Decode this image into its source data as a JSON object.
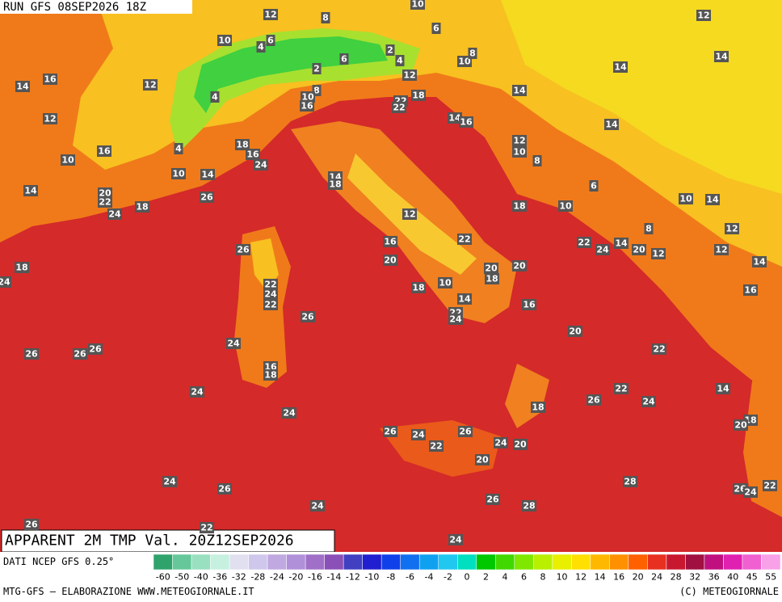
{
  "header": {
    "run": "RUN GFS 08SEP2026 18Z",
    "title": "APPARENT 2M TMP Val. 20Z12SEP2026",
    "source": "DATI NCEP GFS 0.25°",
    "footer_left": "MTG-GFS — ELABORAZIONE WWW.METEOGIORNALE.IT",
    "footer_right": "(C) METEOGIORNALE"
  },
  "map_labels": [
    12,
    8,
    10,
    6,
    12,
    10,
    4,
    6,
    2,
    6,
    4,
    10,
    8,
    14,
    14,
    14,
    16,
    12,
    14,
    2,
    8,
    10,
    16,
    4,
    12,
    18,
    22,
    22,
    12,
    14,
    16,
    14,
    12,
    10,
    8,
    16,
    10,
    18,
    16,
    24,
    4,
    10,
    14,
    14,
    18,
    14,
    20,
    22,
    24,
    18,
    26,
    6,
    10,
    14,
    18,
    10,
    12,
    22,
    16,
    22,
    24,
    14,
    20,
    12,
    8,
    12,
    12,
    14,
    18,
    26,
    20,
    20,
    20,
    18,
    24,
    16,
    22,
    24,
    22,
    18,
    10,
    14,
    16,
    22,
    24,
    26,
    24,
    20,
    22,
    26,
    26,
    26,
    16,
    18,
    24,
    24,
    18,
    26,
    22,
    24,
    14,
    18,
    20,
    26,
    24,
    22,
    26,
    24,
    20,
    20,
    28,
    24,
    26,
    26,
    24,
    22,
    24,
    26,
    28,
    26,
    22,
    24
  ],
  "colorbar": {
    "labels": [
      -60,
      -50,
      -40,
      -36,
      -32,
      -28,
      -24,
      -20,
      -16,
      -14,
      -12,
      -10,
      -8,
      -6,
      -4,
      -2,
      0,
      2,
      4,
      6,
      8,
      10,
      12,
      14,
      16,
      20,
      24,
      28,
      32,
      36,
      40,
      45,
      55
    ],
    "colors": [
      "#2fa36b",
      "#66c89a",
      "#99e0c0",
      "#c6f0e0",
      "#e0e0f0",
      "#d0c8ec",
      "#c0a8e0",
      "#b090d8",
      "#a070c8",
      "#8a50b8",
      "#4040c0",
      "#2020d0",
      "#1040e8",
      "#1070f0",
      "#10a0f0",
      "#20c8f0",
      "#00e0c0",
      "#00c800",
      "#40d800",
      "#80e800",
      "#b8f000",
      "#e8f000",
      "#ffe000",
      "#ffb800",
      "#ff9000",
      "#ff6000",
      "#e83020",
      "#c81830",
      "#a01040",
      "#c01080",
      "#e020b0",
      "#f060d0",
      "#f8a0e8"
    ]
  }
}
